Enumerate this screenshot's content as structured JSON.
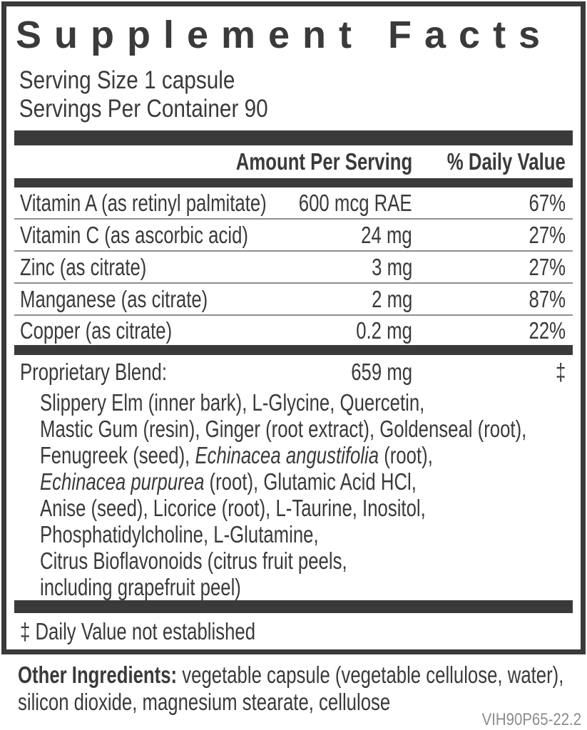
{
  "title": "Supplement Facts",
  "serving": {
    "size_line": "Serving Size 1 capsule",
    "container_line": "Servings Per Container 90"
  },
  "table": {
    "headers": {
      "amount": "Amount Per Serving",
      "daily_value": "% Daily Value"
    },
    "rows": [
      {
        "name": "Vitamin A (as retinyl palmitate)",
        "amount": "600 mcg RAE",
        "dv": "67%"
      },
      {
        "name": "Vitamin C (as ascorbic acid)",
        "amount": "24 mg",
        "dv": "27%"
      },
      {
        "name": "Zinc (as citrate)",
        "amount": "3 mg",
        "dv": "27%"
      },
      {
        "name": "Manganese (as citrate)",
        "amount": "2 mg",
        "dv": "87%"
      },
      {
        "name": "Copper (as citrate)",
        "amount": "0.2 mg",
        "dv": "22%"
      }
    ]
  },
  "blend": {
    "name": "Proprietary Blend:",
    "amount": "659 mg",
    "dv": "‡",
    "lines": [
      {
        "t1": "Slippery Elm (inner bark), L-Glycine, Quercetin,"
      },
      {
        "t1": "Mastic Gum (resin), Ginger (root extract), Goldenseal (root),"
      },
      {
        "t1": "Fenugreek (seed), ",
        "it": "Echinacea angustifolia",
        "t2": " (root),"
      },
      {
        "it": "Echinacea purpurea",
        "t2": " (root), Glutamic Acid HCl,"
      },
      {
        "t1": "Anise (seed), Licorice (root), L-Taurine, Inositol,"
      },
      {
        "t1": "Phosphatidylcholine, L-Glutamine,"
      },
      {
        "t1": "Citrus Bioflavonoids (citrus fruit peels,"
      },
      {
        "t1": "including grapefruit peel)"
      }
    ]
  },
  "footnote": "‡ Daily Value not established",
  "other_ingredients": {
    "label": "Other Ingredients:",
    "line1_rest": " vegetable capsule (vegetable cellulose, water),",
    "line2": "silicon dioxide, magnesium stearate, cellulose"
  },
  "code": "VIH90P65-22.2",
  "colors": {
    "ink": "#3a3a3a",
    "separator": "#8f8f8f",
    "code_gray": "#8c8c8c"
  }
}
